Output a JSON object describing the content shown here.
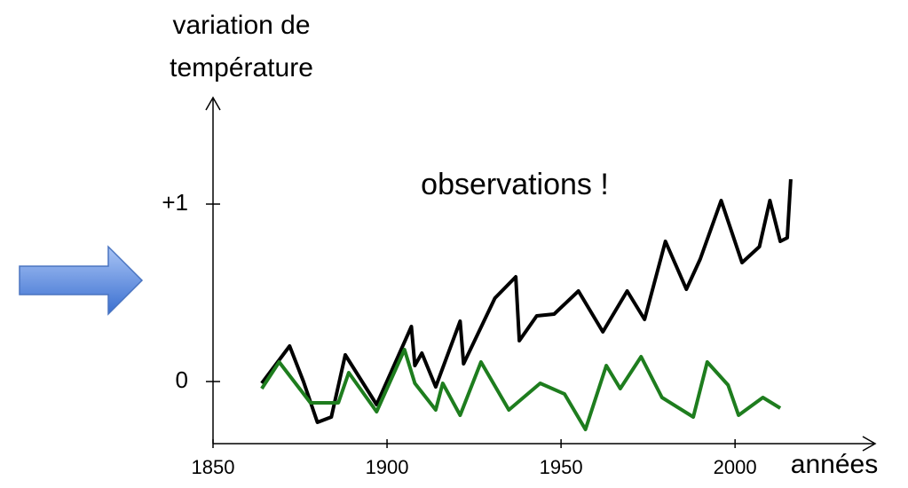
{
  "chart_data": {
    "type": "line",
    "ylabel": [
      "variation de",
      "température"
    ],
    "xlabel": "années",
    "annotations": [
      "observations !"
    ],
    "xlim": [
      1850,
      2040
    ],
    "xticks": [
      1850,
      1900,
      1950,
      2000
    ],
    "ylim": [
      -0.35,
      1.6
    ],
    "yticks": [
      0,
      {
        "value": 1,
        "label": "+1"
      }
    ],
    "series": [
      {
        "color": "#000000",
        "x": [
          1864,
          1872,
          1876,
          1880,
          1884,
          1888,
          1897,
          1907,
          1908,
          1910,
          1914,
          1921,
          1922,
          1931,
          1937,
          1938,
          1943,
          1948,
          1955,
          1962,
          1969,
          1974,
          1980,
          1986,
          1990,
          1996,
          2002,
          2007,
          2010,
          2013,
          2015,
          2016
        ],
        "values": [
          -0.01,
          0.2,
          0,
          -0.23,
          -0.2,
          0.15,
          -0.13,
          0.31,
          0.09,
          0.16,
          -0.03,
          0.34,
          0.1,
          0.47,
          0.59,
          0.23,
          0.37,
          0.38,
          0.51,
          0.28,
          0.51,
          0.35,
          0.79,
          0.52,
          0.69,
          1.02,
          0.67,
          0.76,
          1.02,
          0.79,
          0.81,
          1.14
        ]
      },
      {
        "color": "#1e7d1e",
        "x": [
          1864,
          1869,
          1878,
          1886,
          1889,
          1897,
          1905,
          1908,
          1914,
          1916,
          1921,
          1927,
          1935,
          1944,
          1951,
          1957,
          1963,
          1967,
          1973,
          1979,
          1988,
          1992,
          1998,
          2001,
          2008,
          2013
        ],
        "values": [
          -0.04,
          0.11,
          -0.12,
          -0.12,
          0.05,
          -0.17,
          0.18,
          -0.01,
          -0.16,
          -0.01,
          -0.19,
          0.11,
          -0.16,
          -0.01,
          -0.07,
          -0.27,
          0.09,
          -0.04,
          0.14,
          -0.09,
          -0.2,
          0.11,
          -0.02,
          -0.19,
          -0.09,
          -0.15
        ]
      }
    ]
  }
}
